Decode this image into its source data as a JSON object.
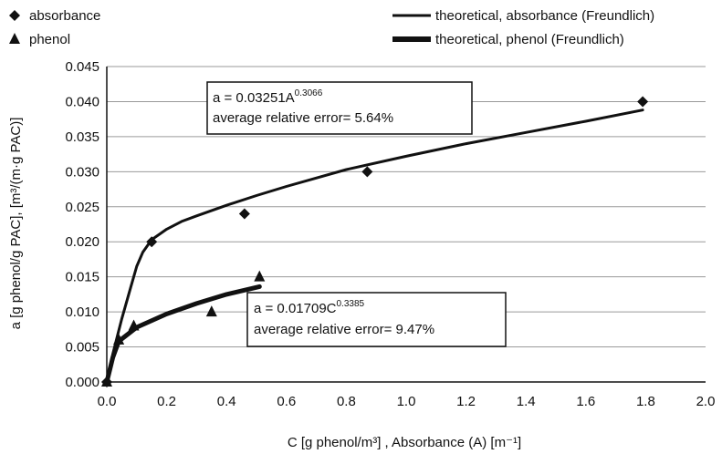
{
  "chart_data": {
    "type": "scatter",
    "xlabel": "C [g phenol/m³] , Absorbance (A) [m⁻¹]",
    "ylabel": "a [g phenol/g PAC], [m³/(m·g PAC)]",
    "xlim": [
      0,
      2.0
    ],
    "ylim": [
      0,
      0.045
    ],
    "x_ticks": [
      "0.0",
      "0.2",
      "0.4",
      "0.6",
      "0.8",
      "1.0",
      "1.2",
      "1.4",
      "1.6",
      "1.8",
      "2.0"
    ],
    "y_ticks": [
      "0.000",
      "0.005",
      "0.010",
      "0.015",
      "0.020",
      "0.025",
      "0.030",
      "0.035",
      "0.040",
      "0.045"
    ],
    "grid": "horizontal",
    "legend": [
      {
        "label": "absorbance",
        "marker": "diamond"
      },
      {
        "label": "phenol",
        "marker": "triangle"
      },
      {
        "label": "theoretical, absorbance (Freundlich)",
        "marker": "line-thin"
      },
      {
        "label": "theoretical, phenol (Freundlich)",
        "marker": "line-thick"
      }
    ],
    "series": [
      {
        "name": "absorbance",
        "kind": "points",
        "marker": "diamond",
        "x": [
          0.0,
          0.15,
          0.46,
          0.87,
          1.79
        ],
        "y": [
          0.0,
          0.02,
          0.024,
          0.03,
          0.04
        ]
      },
      {
        "name": "phenol",
        "kind": "points",
        "marker": "triangle",
        "x": [
          0.0,
          0.04,
          0.09,
          0.35,
          0.51
        ],
        "y": [
          0.0,
          0.006,
          0.008,
          0.01,
          0.015
        ]
      },
      {
        "name": "theoretical, absorbance (Freundlich)",
        "kind": "line",
        "width": "thin",
        "x": [
          0.0,
          0.02,
          0.05,
          0.08,
          0.1,
          0.12,
          0.15,
          0.2,
          0.25,
          0.3,
          0.4,
          0.5,
          0.6,
          0.8,
          1.0,
          1.2,
          1.4,
          1.6,
          1.79
        ],
        "y": [
          0.0,
          0.004,
          0.009,
          0.0135,
          0.0165,
          0.0185,
          0.0203,
          0.0218,
          0.0229,
          0.0237,
          0.0252,
          0.0266,
          0.0279,
          0.0303,
          0.0322,
          0.034,
          0.0356,
          0.0372,
          0.0388
        ]
      },
      {
        "name": "theoretical, phenol (Freundlich)",
        "kind": "line",
        "width": "thick",
        "x": [
          0.0,
          0.02,
          0.04,
          0.1,
          0.2,
          0.3,
          0.4,
          0.51
        ],
        "y": [
          0.0,
          0.0035,
          0.0058,
          0.0078,
          0.0097,
          0.0112,
          0.0125,
          0.0136
        ]
      }
    ],
    "annotations": [
      {
        "base": "a = 0.03251A",
        "sup": "0.3066",
        "error": "average relative error= 5.64%"
      },
      {
        "base": "a = 0.01709C",
        "sup": "0.3385",
        "error": "average relative error= 9.47%"
      }
    ]
  }
}
